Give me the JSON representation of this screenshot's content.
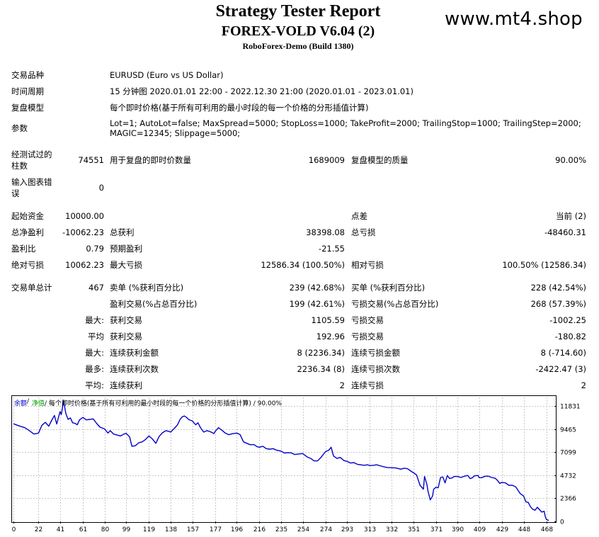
{
  "header": {
    "title": "Strategy Tester Report",
    "expert": "FOREX-VOLD V6.04 (2)",
    "server": "RoboForex-Demo (Build 1380)",
    "watermark": "www.mt4.shop"
  },
  "settings": {
    "symbol_label": "交易品种",
    "symbol_value": "EURUSD (Euro vs US Dollar)",
    "period_label": "时间周期",
    "period_value": "15 分钟图 2020.01.01 22:00 - 2022.12.30 21:00 (2020.01.01 - 2023.01.01)",
    "model_label": "复盘模型",
    "model_value": "每个即时价格(基于所有可利用的最小时段的每一个价格的分形插值计算)",
    "params_label": "参数",
    "params_line1": "Lot=1; AutoLot=false; MaxSpread=5000; StopLoss=1000; TakeProfit=2000; TrailingStop=1000; TrailingStep=2000;",
    "params_line2": "MAGIC=12345; Slippage=5000;"
  },
  "quality": {
    "bars_label_1": "经测试过的",
    "bars_label_2": "柱数",
    "bars_value": "74551",
    "ticks_label": "用于复盘的即时价数量",
    "ticks_value": "1689009",
    "quality_label": "复盘模型的质量",
    "quality_value": "90.00%",
    "errors_label_1": "输入图表错",
    "errors_label_2": "误",
    "errors_value": "0"
  },
  "money": {
    "deposit_label": "起始资金",
    "deposit_value": "10000.00",
    "spread_label": "点差",
    "spread_value": "当前 (2)",
    "net_label": "总净盈利",
    "net_value": "-10062.23",
    "gross_profit_label": "总获利",
    "gross_profit_value": "38398.08",
    "gross_loss_label": "总亏损",
    "gross_loss_value": "-48460.31",
    "pf_label": "盈利比",
    "pf_value": "0.79",
    "payoff_label": "预期盈利",
    "payoff_value": "-21.55",
    "abs_dd_label": "绝对亏损",
    "abs_dd_value": "10062.23",
    "max_dd_label": "最大亏损",
    "max_dd_value": "12586.34 (100.50%)",
    "rel_dd_label": "相对亏损",
    "rel_dd_value": "100.50% (12586.34)"
  },
  "trades": {
    "total_label": "交易单总计",
    "total_value": "467",
    "short_label": "卖单 (%获利百分比)",
    "short_value": "239 (42.68%)",
    "long_label": "买单 (%获利百分比)",
    "long_value": "228 (42.54%)",
    "profit_trades_label": "盈利交易(%占总百分比)",
    "profit_trades_value": "199 (42.61%)",
    "loss_trades_label": "亏损交易(%占总百分比)",
    "loss_trades_value": "268 (57.39%)",
    "largest_prefix": "最大:",
    "largest_profit_label": "获利交易",
    "largest_profit_value": "1105.59",
    "largest_loss_label": "亏损交易",
    "largest_loss_value": "-1002.25",
    "average_prefix": "平均",
    "average_profit_label": "获利交易",
    "average_profit_value": "192.96",
    "average_loss_label": "亏损交易",
    "average_loss_value": "-180.82",
    "max_consec_prefix": "最大:",
    "max_consec_wins_label": "连续获利金额",
    "max_consec_wins_value": "8 (2236.34)",
    "max_consec_losses_label": "连续亏损金额",
    "max_consec_losses_value": "8 (-714.60)",
    "maximal_prefix": "最多:",
    "maximal_wins_label": "连续获利次数",
    "maximal_wins_value": "2236.34 (8)",
    "maximal_losses_label": "连续亏损次数",
    "maximal_losses_value": "-2422.47 (3)",
    "avg_consec_prefix": "平均:",
    "avg_consec_wins_label": "连续获利",
    "avg_consec_wins_value": "2",
    "avg_consec_losses_label": "连续亏损",
    "avg_consec_losses_value": "2"
  },
  "colors": {
    "balance": "#0000c8",
    "equity": "#00a000",
    "grid": "#c8c8c8",
    "axis": "#000000"
  },
  "chart_data": {
    "type": "line",
    "legend": {
      "balance": "余额",
      "equity": "净值",
      "rest": " / 每个即时价格(基于所有可利用的最小时段的每一个价格的分形插值计算) / 90.00%",
      "placement": "top-left"
    },
    "grid": true,
    "xlim": [
      0,
      475
    ],
    "ylim": [
      0,
      12700
    ],
    "x_ticks": [
      0,
      22,
      41,
      61,
      80,
      99,
      119,
      138,
      157,
      177,
      196,
      216,
      235,
      254,
      274,
      293,
      313,
      332,
      351,
      371,
      390,
      409,
      429,
      448,
      468
    ],
    "y_ticks": [
      0,
      2366,
      4732,
      7099,
      9465,
      11831
    ],
    "series": [
      {
        "name": "余额",
        "points": [
          [
            0,
            10000
          ],
          [
            5,
            9780
          ],
          [
            10,
            9600
          ],
          [
            14,
            9300
          ],
          [
            18,
            8950
          ],
          [
            22,
            9050
          ],
          [
            25,
            9850
          ],
          [
            28,
            10150
          ],
          [
            31,
            9750
          ],
          [
            34,
            10450
          ],
          [
            36,
            10850
          ],
          [
            38,
            9980
          ],
          [
            40,
            10850
          ],
          [
            41,
            11250
          ],
          [
            42,
            10950
          ],
          [
            44,
            12350
          ],
          [
            46,
            11050
          ],
          [
            48,
            10450
          ],
          [
            50,
            10600
          ],
          [
            52,
            10100
          ],
          [
            54,
            10050
          ],
          [
            56,
            9900
          ],
          [
            58,
            10400
          ],
          [
            61,
            10650
          ],
          [
            64,
            10400
          ],
          [
            67,
            10450
          ],
          [
            70,
            10500
          ],
          [
            73,
            10050
          ],
          [
            76,
            9650
          ],
          [
            80,
            9480
          ],
          [
            83,
            9050
          ],
          [
            85,
            9300
          ],
          [
            88,
            8950
          ],
          [
            91,
            8850
          ],
          [
            94,
            8750
          ],
          [
            97,
            8950
          ],
          [
            99,
            9020
          ],
          [
            102,
            8650
          ],
          [
            104,
            7700
          ],
          [
            107,
            7750
          ],
          [
            110,
            8050
          ],
          [
            113,
            8150
          ],
          [
            116,
            8400
          ],
          [
            119,
            8750
          ],
          [
            122,
            8450
          ],
          [
            125,
            8000
          ],
          [
            128,
            8720
          ],
          [
            131,
            9100
          ],
          [
            134,
            9300
          ],
          [
            137,
            9200
          ],
          [
            138,
            9150
          ],
          [
            141,
            9500
          ],
          [
            144,
            9880
          ],
          [
            146,
            10380
          ],
          [
            148,
            10700
          ],
          [
            150,
            10800
          ],
          [
            152,
            10650
          ],
          [
            154,
            10420
          ],
          [
            157,
            10300
          ],
          [
            160,
            9900
          ],
          [
            162,
            10100
          ],
          [
            164,
            9650
          ],
          [
            167,
            9150
          ],
          [
            170,
            9300
          ],
          [
            173,
            9180
          ],
          [
            176,
            9000
          ],
          [
            177,
            9200
          ],
          [
            180,
            9600
          ],
          [
            183,
            9350
          ],
          [
            186,
            9050
          ],
          [
            189,
            8880
          ],
          [
            192,
            8980
          ],
          [
            196,
            9050
          ],
          [
            199,
            8900
          ],
          [
            202,
            8150
          ],
          [
            205,
            8000
          ],
          [
            208,
            7850
          ],
          [
            211,
            7880
          ],
          [
            214,
            7650
          ],
          [
            216,
            7600
          ],
          [
            219,
            7700
          ],
          [
            222,
            7450
          ],
          [
            225,
            7400
          ],
          [
            228,
            7450
          ],
          [
            231,
            7300
          ],
          [
            235,
            7200
          ],
          [
            238,
            7000
          ],
          [
            241,
            7050
          ],
          [
            244,
            7020
          ],
          [
            247,
            6850
          ],
          [
            250,
            6900
          ],
          [
            254,
            6950
          ],
          [
            258,
            6600
          ],
          [
            261,
            6450
          ],
          [
            264,
            6200
          ],
          [
            267,
            6200
          ],
          [
            270,
            6550
          ],
          [
            274,
            7150
          ],
          [
            277,
            7300
          ],
          [
            279,
            7600
          ],
          [
            281,
            6700
          ],
          [
            284,
            6450
          ],
          [
            287,
            6550
          ],
          [
            290,
            6250
          ],
          [
            293,
            6150
          ],
          [
            296,
            5980
          ],
          [
            299,
            6020
          ],
          [
            302,
            5850
          ],
          [
            305,
            5800
          ],
          [
            308,
            5750
          ],
          [
            311,
            5800
          ],
          [
            313,
            5720
          ],
          [
            316,
            5750
          ],
          [
            319,
            5800
          ],
          [
            322,
            5700
          ],
          [
            325,
            5600
          ],
          [
            328,
            5520
          ],
          [
            332,
            5500
          ],
          [
            336,
            5470
          ],
          [
            340,
            5350
          ],
          [
            343,
            5450
          ],
          [
            346,
            5400
          ],
          [
            349,
            5150
          ],
          [
            351,
            5000
          ],
          [
            354,
            4750
          ],
          [
            357,
            3700
          ],
          [
            360,
            3300
          ],
          [
            361,
            4600
          ],
          [
            363,
            3800
          ],
          [
            364,
            3100
          ],
          [
            366,
            2200
          ],
          [
            368,
            2600
          ],
          [
            369,
            3300
          ],
          [
            371,
            3500
          ],
          [
            373,
            3450
          ],
          [
            375,
            4500
          ],
          [
            377,
            4550
          ],
          [
            379,
            3950
          ],
          [
            381,
            4700
          ],
          [
            383,
            4400
          ],
          [
            385,
            4450
          ],
          [
            387,
            4600
          ],
          [
            390,
            4600
          ],
          [
            393,
            4500
          ],
          [
            396,
            4640
          ],
          [
            399,
            4700
          ],
          [
            401,
            4380
          ],
          [
            403,
            4480
          ],
          [
            405,
            4680
          ],
          [
            408,
            4700
          ],
          [
            409,
            4480
          ],
          [
            411,
            4480
          ],
          [
            414,
            4620
          ],
          [
            417,
            4640
          ],
          [
            420,
            4500
          ],
          [
            423,
            4420
          ],
          [
            425,
            4200
          ],
          [
            427,
            3900
          ],
          [
            429,
            4000
          ],
          [
            432,
            3950
          ],
          [
            435,
            3700
          ],
          [
            438,
            3700
          ],
          [
            441,
            3550
          ],
          [
            443,
            3200
          ],
          [
            445,
            2850
          ],
          [
            448,
            2600
          ],
          [
            450,
            2000
          ],
          [
            452,
            1950
          ],
          [
            454,
            1500
          ],
          [
            456,
            1250
          ],
          [
            458,
            1150
          ],
          [
            460,
            1450
          ],
          [
            462,
            1200
          ],
          [
            464,
            950
          ],
          [
            466,
            1050
          ],
          [
            467,
            500
          ],
          [
            468,
            200
          ],
          [
            470,
            100
          ]
        ]
      }
    ]
  }
}
